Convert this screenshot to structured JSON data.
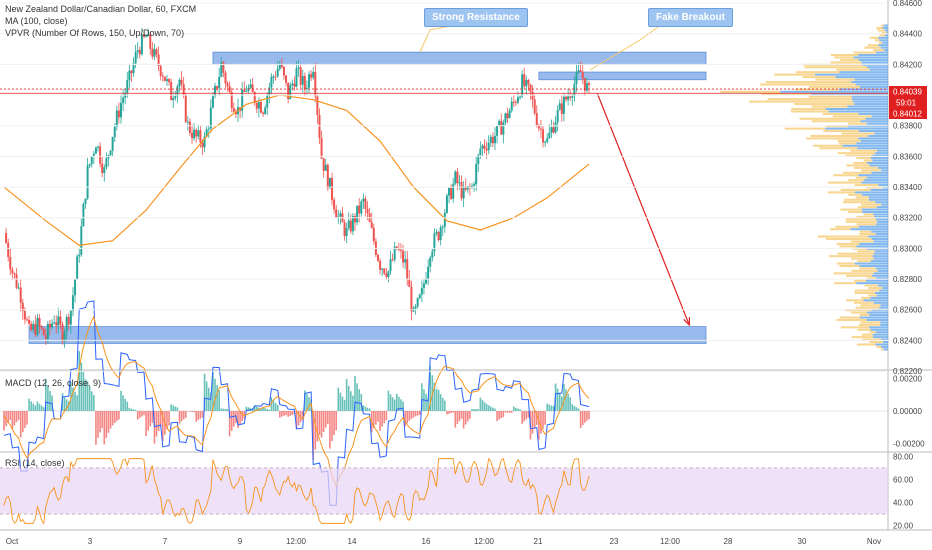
{
  "legends": {
    "main": "New Zealand Dollar/Canadian Dollar, 60, FXCM",
    "ma": "MA (100, close)",
    "vpvr": "VPVR (Number Of Rows, 150, Up/Down, 70)",
    "macd": "MACD (12, 26, close, 9)",
    "rsi": "RSI (14, close)"
  },
  "annotations": {
    "strong_resistance": "Strong Resistance",
    "fake_breakout": "Fake Breakout"
  },
  "price_badges": {
    "upper": "0.84039",
    "timer": "59:01",
    "lower": "0.84012"
  },
  "colors": {
    "up": "#26a69a",
    "down": "#ef5350",
    "ma": "#f7931e",
    "zone": "#7ea9e8",
    "arrow": "#e02020",
    "rsi_band": "#e8d5f5",
    "vp_up": "#5aa0e8",
    "vp_down": "#f5c86a"
  },
  "chart_data": [
    {
      "type": "candlestick",
      "title": "New Zealand Dollar/Canadian Dollar, 60, FXCM",
      "y_ticks": [
        "0.84600",
        "0.84400",
        "0.84200",
        "0.84000",
        "0.83800",
        "0.83600",
        "0.83400",
        "0.83200",
        "0.83000",
        "0.82800",
        "0.82600",
        "0.82400",
        "0.82200"
      ],
      "ylim": [
        0.8222,
        0.8462
      ],
      "x_ticks": [
        "Oct",
        "3",
        "7",
        "9",
        "12:00",
        "14",
        "16",
        "12:00",
        "21",
        "23",
        "12:00",
        "28",
        "30",
        "Nov"
      ],
      "last_price": 0.84012,
      "path_points": [
        [
          0,
          0.831
        ],
        [
          1,
          0.8285
        ],
        [
          2,
          0.827
        ],
        [
          3,
          0.8245
        ],
        [
          4,
          0.825
        ],
        [
          5,
          0.8242
        ],
        [
          6,
          0.8255
        ],
        [
          7,
          0.8245
        ],
        [
          8,
          0.826
        ],
        [
          9,
          0.83
        ],
        [
          10,
          0.835
        ],
        [
          11,
          0.837
        ],
        [
          12,
          0.835
        ],
        [
          13,
          0.8375
        ],
        [
          14,
          0.8395
        ],
        [
          15,
          0.841
        ],
        [
          16,
          0.843
        ],
        [
          17,
          0.8438
        ],
        [
          18,
          0.8425
        ],
        [
          19,
          0.8415
        ],
        [
          20,
          0.84
        ],
        [
          21,
          0.841
        ],
        [
          22,
          0.838
        ],
        [
          23,
          0.8372
        ],
        [
          24,
          0.837
        ],
        [
          25,
          0.8395
        ],
        [
          26,
          0.842
        ],
        [
          27,
          0.84
        ],
        [
          28,
          0.839
        ],
        [
          29,
          0.8405
        ],
        [
          30,
          0.8398
        ],
        [
          31,
          0.8392
        ],
        [
          32,
          0.841
        ],
        [
          33,
          0.842
        ],
        [
          34,
          0.84
        ],
        [
          35,
          0.8415
        ],
        [
          36,
          0.8405
        ],
        [
          37,
          0.842
        ],
        [
          38,
          0.836
        ],
        [
          39,
          0.834
        ],
        [
          40,
          0.832
        ],
        [
          41,
          0.831
        ],
        [
          42,
          0.832
        ],
        [
          43,
          0.833
        ],
        [
          44,
          0.831
        ],
        [
          45,
          0.829
        ],
        [
          46,
          0.8285
        ],
        [
          47,
          0.83
        ],
        [
          48,
          0.829
        ],
        [
          49,
          0.8255
        ],
        [
          50,
          0.827
        ],
        [
          51,
          0.83
        ],
        [
          52,
          0.831
        ],
        [
          53,
          0.833
        ],
        [
          54,
          0.8345
        ],
        [
          55,
          0.8335
        ],
        [
          56,
          0.834
        ],
        [
          57,
          0.8365
        ],
        [
          58,
          0.837
        ],
        [
          59,
          0.8375
        ],
        [
          60,
          0.8385
        ],
        [
          61,
          0.8395
        ],
        [
          62,
          0.8408
        ],
        [
          63,
          0.84
        ],
        [
          64,
          0.838
        ],
        [
          65,
          0.837
        ],
        [
          66,
          0.8385
        ],
        [
          67,
          0.8395
        ],
        [
          68,
          0.8405
        ],
        [
          69,
          0.8415
        ],
        [
          70,
          0.8401
        ]
      ],
      "ma_points": [
        [
          0,
          0.834
        ],
        [
          5,
          0.8318
        ],
        [
          9,
          0.8302
        ],
        [
          13,
          0.8305
        ],
        [
          17,
          0.8325
        ],
        [
          21,
          0.8352
        ],
        [
          25,
          0.8378
        ],
        [
          29,
          0.8394
        ],
        [
          33,
          0.84
        ],
        [
          37,
          0.8397
        ],
        [
          41,
          0.839
        ],
        [
          45,
          0.837
        ],
        [
          49,
          0.834
        ],
        [
          53,
          0.8318
        ],
        [
          57,
          0.8312
        ],
        [
          61,
          0.832
        ],
        [
          65,
          0.8333
        ],
        [
          70,
          0.8355
        ]
      ],
      "zones": [
        {
          "label": "strong-resistance",
          "x_from": 25,
          "x_to": 84,
          "y_low": 0.842,
          "y_high": 0.8428
        },
        {
          "label": "breakout-zone",
          "x_from": 64,
          "x_to": 84,
          "y_low": 0.841,
          "y_high": 0.8415
        },
        {
          "label": "support",
          "x_from": 3,
          "x_to": 84,
          "y_low": 0.8238,
          "y_high": 0.8249
        }
      ],
      "horizontal_lines": [
        0.84039,
        0.84012
      ],
      "arrow": {
        "from": [
          71,
          0.8401
        ],
        "to": [
          82,
          0.825
        ]
      }
    },
    {
      "type": "line",
      "title": "MACD (12, 26, close, 9)",
      "y_ticks": [
        "0.00200",
        "0.00000",
        "-0.00200"
      ],
      "ylim": [
        -0.0024,
        0.0024
      ]
    },
    {
      "type": "line",
      "title": "RSI (14, close)",
      "y_ticks": [
        "80.00",
        "60.00",
        "40.00",
        "20.00"
      ],
      "ylim": [
        18,
        82
      ],
      "band": [
        30,
        70
      ]
    }
  ]
}
